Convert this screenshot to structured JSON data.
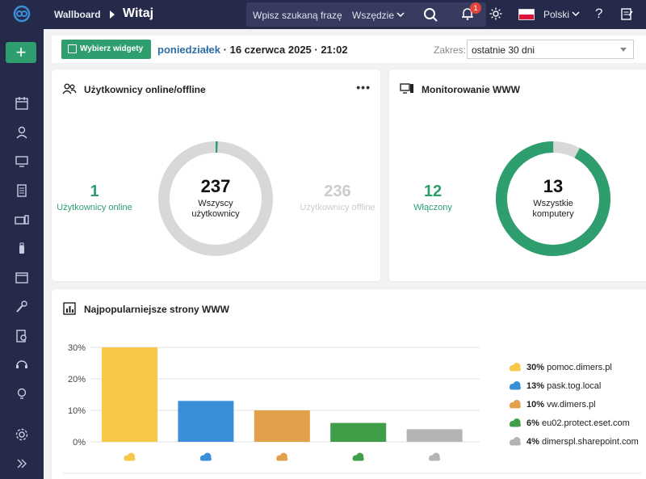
{
  "app": {
    "breadcrumb_root": "Wallboard",
    "page_title": "Witaj"
  },
  "search": {
    "placeholder": "Wpisz szukaną frazę",
    "scope": "Wszędzie"
  },
  "notifications": {
    "badge_count": "1"
  },
  "language": {
    "label": "Polski"
  },
  "toolbar": {
    "widgets_button": "Wybierz widgety",
    "date_day": "poniedziałek",
    "date_rest": " · 16 czerwca 2025 · 21:02",
    "range_label": "Zakres:",
    "range_value": "ostatnie 30 dni"
  },
  "users_card": {
    "title": "Użytkownicy online/offline",
    "online_count": "1",
    "online_label": "Użytkownicy online",
    "total_count": "237",
    "total_label_1": "Wszyscy",
    "total_label_2": "użytkownicy",
    "offline_count": "236",
    "offline_label": "Użytkownicy offline",
    "online_fraction": 0.0042
  },
  "www_card": {
    "title": "Monitorowanie WWW",
    "enabled_count": "12",
    "enabled_label": "Włączony",
    "total_count": "13",
    "total_label_1": "Wszystkie",
    "total_label_2": "komputery",
    "enabled_fraction": 0.923
  },
  "colors": {
    "green": "#2e9e6e",
    "donut_gray": "#d8d8d8",
    "yellow": "#f6c949",
    "blue": "#3b8fd9",
    "orange": "#e3a04a",
    "dgreen": "#3f9e47",
    "gray": "#b4b4b7"
  },
  "top_sites_card": {
    "title": "Najpopularniejsze strony WWW"
  },
  "chart_data": {
    "type": "bar",
    "categories": [
      "pomoc.dimers.pl",
      "pask.tog.local",
      "vw.dimers.pl",
      "eu02.protect.eset.com",
      "dimerspl.sharepoint.com"
    ],
    "values": [
      30,
      13,
      10,
      6,
      4
    ],
    "value_labels": [
      "30%",
      "13%",
      "10%",
      "6%",
      "4%"
    ],
    "colors": [
      "#f6c949",
      "#3b8fd9",
      "#e3a04a",
      "#3f9e47",
      "#b4b4b7"
    ],
    "yticks": [
      "0%",
      "10%",
      "20%",
      "30%"
    ],
    "ylim": [
      0,
      30
    ],
    "grid": true,
    "legend_position": "right"
  }
}
